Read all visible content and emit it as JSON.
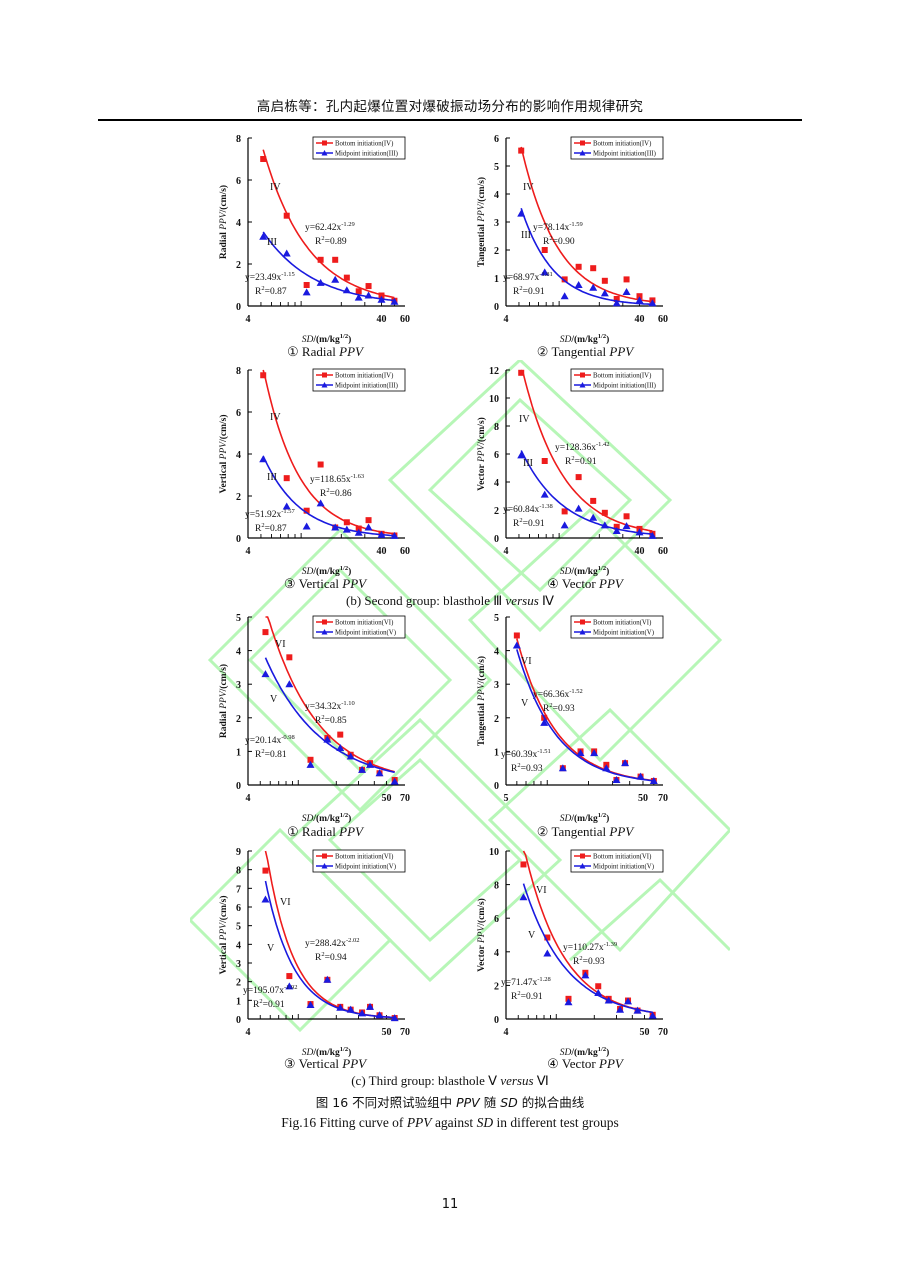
{
  "header": {
    "running_title": "高启栋等：孔内起爆位置对爆破振动场分布的影响作用规律研究"
  },
  "colors": {
    "bottom": "#ee1c1c",
    "midpoint": "#1a1adf",
    "watermark": "#7df07d"
  },
  "groups": [
    {
      "caption_pre": "(b) Second group: blasthole Ⅲ ",
      "caption_em": "versus",
      "caption_post": " Ⅳ"
    },
    {
      "caption_pre": "(c) Third group: blasthole Ⅴ ",
      "caption_em": "versus",
      "caption_post": " Ⅵ"
    }
  ],
  "figure": {
    "caption_cn_pre": "图 16  不同对照试验组中 ",
    "caption_cn_em1": "PPV",
    "caption_cn_mid": " 随 ",
    "caption_cn_em2": "SD",
    "caption_cn_post": " 的拟合曲线",
    "caption_en_pre": "Fig.16 Fitting curve of ",
    "caption_en_em1": "PPV",
    "caption_en_mid": " against ",
    "caption_en_em2": "SD",
    "caption_en_post": " in different test groups"
  },
  "page_number": "11",
  "chart_data": [
    {
      "type": "scatter",
      "panel_label": "①  Radial ",
      "panel_label_em": "PPV",
      "xlabel_em": "SD",
      "xlabel": "/(m/kg",
      "xlabel_sup": "1/2",
      "xlabel_end": ")",
      "ylabel_pre": "Radial ",
      "ylabel_em": "PPV",
      "ylabel_post": "/(cm/s)",
      "xscale": "log",
      "xlim": [
        4,
        60
      ],
      "xticks": [
        4,
        40,
        60
      ],
      "ylim": [
        0,
        8
      ],
      "yticks": [
        0,
        2,
        4,
        6,
        8
      ],
      "legend": [
        "Bottom initiation(IV)",
        "Midpoint initiation(III)"
      ],
      "legend_position": "top-right",
      "series": [
        {
          "name": "Bottom initiation(IV)",
          "marker": "square",
          "color_key": "bottom",
          "curve_label": "IV",
          "x": [
            5.2,
            7.8,
            11,
            14,
            18,
            22,
            27,
            32,
            40,
            50
          ],
          "y": [
            7.0,
            4.3,
            1.0,
            2.2,
            2.2,
            1.35,
            0.7,
            0.95,
            0.5,
            0.25
          ],
          "fit": {
            "a": 62.42,
            "b": -1.29,
            "r2": 0.89,
            "equation_coef": "y=62.42x",
            "equation_exp": "-1.29",
            "r2_text": "=0.89"
          }
        },
        {
          "name": "Midpoint initiation(III)",
          "marker": "triangle",
          "color_key": "midpoint",
          "curve_label": "III",
          "x": [
            5.2,
            7.8,
            11,
            14,
            18,
            22,
            27,
            32,
            40,
            50
          ],
          "y": [
            3.3,
            2.5,
            0.65,
            1.1,
            1.25,
            0.75,
            0.4,
            0.5,
            0.3,
            0.2
          ],
          "fit": {
            "a": 23.49,
            "b": -1.15,
            "r2": 0.87,
            "equation_coef": "y=23.49x",
            "equation_exp": "-1.15",
            "r2_text": "=0.87"
          }
        }
      ]
    },
    {
      "type": "scatter",
      "panel_label": "②  Tangential ",
      "panel_label_em": "PPV",
      "xlabel_em": "SD",
      "xlabel": "/(m/kg",
      "xlabel_sup": "1/2",
      "xlabel_end": ")",
      "ylabel_pre": "Tangential ",
      "ylabel_em": "PPV",
      "ylabel_post": "/(cm/s)",
      "xscale": "log",
      "xlim": [
        4,
        60
      ],
      "xticks": [
        4,
        40,
        60
      ],
      "ylim": [
        0,
        6
      ],
      "yticks": [
        0,
        1,
        2,
        3,
        4,
        5,
        6
      ],
      "legend": [
        "Bottom initiation(IV)",
        "Midpoint initiation(III)"
      ],
      "legend_position": "top-right",
      "series": [
        {
          "name": "Bottom initiation(IV)",
          "marker": "square",
          "color_key": "bottom",
          "curve_label": "IV",
          "x": [
            5.2,
            7.8,
            11,
            14,
            18,
            22,
            27,
            32,
            40,
            50
          ],
          "y": [
            5.55,
            2.0,
            0.95,
            1.4,
            1.35,
            0.9,
            0.25,
            0.95,
            0.35,
            0.2
          ],
          "fit": {
            "a": 78.14,
            "b": -1.59,
            "r2": 0.9,
            "equation_coef": "y=78.14x",
            "equation_exp": "-1.59",
            "r2_text": "=0.90"
          }
        },
        {
          "name": "Midpoint initiation(III)",
          "marker": "triangle",
          "color_key": "midpoint",
          "curve_label": "III",
          "x": [
            5.2,
            7.8,
            11,
            14,
            18,
            22,
            27,
            32,
            40,
            50
          ],
          "y": [
            3.3,
            1.2,
            0.35,
            0.75,
            0.65,
            0.45,
            0.1,
            0.5,
            0.2,
            0.1
          ],
          "fit": {
            "a": 68.97,
            "b": -1.81,
            "r2": 0.91,
            "equation_coef": "y=68.97x",
            "equation_exp": "-1.81",
            "r2_text": "=0.91"
          }
        }
      ]
    },
    {
      "type": "scatter",
      "panel_label": "③  Vertical ",
      "panel_label_em": "PPV",
      "xlabel_em": "SD",
      "xlabel": "/(m/kg",
      "xlabel_sup": "1/2",
      "xlabel_end": ")",
      "ylabel_pre": "Vertical ",
      "ylabel_em": "PPV",
      "ylabel_post": "/(cm/s)",
      "xscale": "log",
      "xlim": [
        4,
        60
      ],
      "xticks": [
        4,
        40,
        60
      ],
      "ylim": [
        0,
        8
      ],
      "yticks": [
        0,
        2,
        4,
        6,
        8
      ],
      "legend": [
        "Bottom initiation(IV)",
        "Midpoint initiation(III)"
      ],
      "legend_position": "top-right",
      "series": [
        {
          "name": "Bottom initiation(IV)",
          "marker": "square",
          "color_key": "bottom",
          "curve_label": "IV",
          "x": [
            5.2,
            7.8,
            11,
            14,
            18,
            22,
            27,
            32,
            40,
            50
          ],
          "y": [
            7.75,
            2.85,
            1.3,
            3.5,
            0.5,
            0.75,
            0.45,
            0.85,
            0.2,
            0.12
          ],
          "fit": {
            "a": 118.65,
            "b": -1.63,
            "r2": 0.86,
            "equation_coef": "y=118.65x",
            "equation_exp": "-1.63",
            "r2_text": "=0.86"
          }
        },
        {
          "name": "Midpoint initiation(III)",
          "marker": "triangle",
          "color_key": "midpoint",
          "curve_label": "III",
          "x": [
            5.2,
            7.8,
            11,
            14,
            18,
            22,
            27,
            32,
            40,
            50
          ],
          "y": [
            3.75,
            1.5,
            0.55,
            1.65,
            0.5,
            0.4,
            0.25,
            0.5,
            0.15,
            0.1
          ],
          "fit": {
            "a": 51.92,
            "b": -1.57,
            "r2": 0.87,
            "equation_coef": "y=51.92x",
            "equation_exp": "-1.57",
            "r2_text": "=0.87"
          }
        }
      ]
    },
    {
      "type": "scatter",
      "panel_label": "④  Vector ",
      "panel_label_em": "PPV",
      "xlabel_em": "SD",
      "xlabel": "/(m/kg",
      "xlabel_sup": "1/2",
      "xlabel_end": ")",
      "ylabel_pre": "Vector ",
      "ylabel_em": "PPV",
      "ylabel_post": "/(cm/s)",
      "xscale": "log",
      "xlim": [
        4,
        60
      ],
      "xticks": [
        4,
        40,
        60
      ],
      "ylim": [
        0,
        12
      ],
      "yticks": [
        0,
        2,
        4,
        6,
        8,
        10,
        12
      ],
      "legend": [
        "Bottom initiation(IV)",
        "Midpoint initiation(III)"
      ],
      "legend_position": "top-right",
      "series": [
        {
          "name": "Bottom initiation(IV)",
          "marker": "square",
          "color_key": "bottom",
          "curve_label": "IV",
          "x": [
            5.2,
            7.8,
            11,
            14,
            18,
            22,
            27,
            32,
            40,
            50
          ],
          "y": [
            11.8,
            5.5,
            1.9,
            4.35,
            2.65,
            1.8,
            0.8,
            1.55,
            0.65,
            0.3
          ],
          "fit": {
            "a": 128.36,
            "b": -1.42,
            "r2": 0.91,
            "equation_coef": "y=128.36x",
            "equation_exp": "-1.42",
            "r2_text": "=0.91"
          }
        },
        {
          "name": "Midpoint initiation(III)",
          "marker": "triangle",
          "color_key": "midpoint",
          "curve_label": "III",
          "x": [
            5.2,
            7.8,
            11,
            14,
            18,
            22,
            27,
            32,
            40,
            50
          ],
          "y": [
            5.9,
            3.1,
            0.9,
            2.1,
            1.45,
            0.9,
            0.5,
            0.85,
            0.4,
            0.15
          ],
          "fit": {
            "a": 60.84,
            "b": -1.38,
            "r2": 0.91,
            "equation_coef": "y=60.84x",
            "equation_exp": "-1.38",
            "r2_text": "=0.91"
          }
        }
      ]
    },
    {
      "type": "scatter",
      "panel_label": "①  Radial ",
      "panel_label_em": "PPV",
      "xlabel_em": "SD",
      "xlabel": "/(m/kg",
      "xlabel_sup": "1/2",
      "xlabel_end": ")",
      "ylabel_pre": "Radial ",
      "ylabel_em": "PPV",
      "ylabel_post": "/(cm/s)",
      "xscale": "log",
      "xlim": [
        4,
        70
      ],
      "xticks": [
        4,
        50,
        70
      ],
      "ylim": [
        0,
        5
      ],
      "yticks": [
        0,
        1,
        2,
        3,
        4,
        5
      ],
      "legend": [
        "Bottom initiation(VI)",
        "Midpoint initiation(V)"
      ],
      "legend_position": "top-right",
      "series": [
        {
          "name": "Bottom initiation(VI)",
          "marker": "square",
          "color_key": "bottom",
          "curve_label": "VI",
          "x": [
            5.5,
            8.5,
            12.5,
            17,
            21.5,
            26,
            32,
            37,
            44,
            58
          ],
          "y": [
            4.55,
            3.8,
            0.75,
            1.4,
            1.5,
            0.9,
            0.45,
            0.65,
            0.35,
            0.15
          ],
          "fit": {
            "a": 34.32,
            "b": -1.1,
            "r2": 0.85,
            "equation_coef": "y=34.32x",
            "equation_exp": "-1.10",
            "r2_text": "=0.85"
          }
        },
        {
          "name": "Midpoint initiation(V)",
          "marker": "triangle",
          "color_key": "midpoint",
          "curve_label": "V",
          "x": [
            5.5,
            8.5,
            12.5,
            17,
            21.5,
            26,
            32,
            37,
            44,
            58
          ],
          "y": [
            3.3,
            3.0,
            0.6,
            1.35,
            1.1,
            0.85,
            0.45,
            0.6,
            0.35,
            0.1
          ],
          "fit": {
            "a": 20.14,
            "b": -0.98,
            "r2": 0.81,
            "equation_coef": "y=20.14x",
            "equation_exp": "-0.98",
            "r2_text": "=0.81"
          }
        }
      ]
    },
    {
      "type": "scatter",
      "panel_label": "②  Tangential ",
      "panel_label_em": "PPV",
      "xlabel_em": "SD",
      "xlabel": "/(m/kg",
      "xlabel_sup": "1/2",
      "xlabel_end": ")",
      "ylabel_pre": "Tangential ",
      "ylabel_em": "PPV",
      "ylabel_post": "/(cm/s)",
      "xscale": "log",
      "xlim": [
        5,
        70
      ],
      "xticks": [
        5,
        50,
        70
      ],
      "ylim": [
        0,
        5
      ],
      "yticks": [
        0,
        1,
        2,
        3,
        4,
        5
      ],
      "legend": [
        "Bottom initiation(VI)",
        "Midpoint initiation(V)"
      ],
      "legend_position": "top-right",
      "series": [
        {
          "name": "Bottom initiation(VI)",
          "marker": "square",
          "color_key": "bottom",
          "curve_label": "VI",
          "x": [
            6,
            9.5,
            13,
            17.5,
            22,
            27,
            32,
            37,
            48,
            60
          ],
          "y": [
            4.45,
            2.0,
            0.5,
            1.0,
            1.0,
            0.6,
            0.15,
            0.65,
            0.25,
            0.12
          ],
          "fit": {
            "a": 66.36,
            "b": -1.52,
            "r2": 0.93,
            "equation_coef": "y=66.36x",
            "equation_exp": "-1.52",
            "r2_text": "=0.93"
          }
        },
        {
          "name": "Midpoint initiation(V)",
          "marker": "triangle",
          "color_key": "midpoint",
          "curve_label": "V",
          "x": [
            6,
            9.5,
            13,
            17.5,
            22,
            27,
            32,
            37,
            48,
            60
          ],
          "y": [
            4.15,
            1.85,
            0.5,
            0.95,
            0.95,
            0.5,
            0.15,
            0.65,
            0.25,
            0.12
          ],
          "fit": {
            "a": 60.39,
            "b": -1.51,
            "r2": 0.93,
            "equation_coef": "y=60.39x",
            "equation_exp": "-1.51",
            "r2_text": "=0.93"
          }
        }
      ]
    },
    {
      "type": "scatter",
      "panel_label": "③  Vertical ",
      "panel_label_em": "PPV",
      "xlabel_em": "SD",
      "xlabel": "/(m/kg",
      "xlabel_sup": "1/2",
      "xlabel_end": ")",
      "ylabel_pre": "Vertical ",
      "ylabel_em": "PPV",
      "ylabel_post": "/(cm/s)",
      "xscale": "log",
      "xlim": [
        4,
        70
      ],
      "xticks": [
        4,
        50,
        70
      ],
      "ylim": [
        0,
        9
      ],
      "yticks": [
        0,
        1,
        2,
        3,
        4,
        5,
        6,
        7,
        8,
        9
      ],
      "legend": [
        "Bottom initiation(VI)",
        "Midpoint initiation(V)"
      ],
      "legend_position": "top-right",
      "series": [
        {
          "name": "Bottom initiation(VI)",
          "marker": "square",
          "color_key": "bottom",
          "curve_label": "VI",
          "x": [
            5.5,
            8.5,
            12.5,
            17,
            21.5,
            26,
            32,
            37,
            44,
            58
          ],
          "y": [
            7.95,
            2.3,
            0.8,
            2.1,
            0.65,
            0.5,
            0.35,
            0.65,
            0.2,
            0.05
          ],
          "fit": {
            "a": 288.42,
            "b": -2.02,
            "r2": 0.94,
            "equation_coef": "y=288.42x",
            "equation_exp": "-2.02",
            "r2_text": "=0.94"
          }
        },
        {
          "name": "Midpoint initiation(V)",
          "marker": "triangle",
          "color_key": "midpoint",
          "curve_label": "V",
          "x": [
            5.5,
            8.5,
            12.5,
            17,
            21.5,
            26,
            32,
            37,
            44,
            58
          ],
          "y": [
            6.4,
            1.75,
            0.75,
            2.1,
            0.6,
            0.5,
            0.3,
            0.65,
            0.2,
            0.05
          ],
          "fit": {
            "a": 195.07,
            "b": -1.92,
            "r2": 0.91,
            "equation_coef": "y=195.07x",
            "equation_exp": "-1.92",
            "r2_text": "=0.91"
          }
        }
      ]
    },
    {
      "type": "scatter",
      "panel_label": "④  Vector ",
      "panel_label_em": "PPV",
      "xlabel_em": "SD",
      "xlabel": "/(m/kg",
      "xlabel_sup": "1/2",
      "xlabel_end": ")",
      "ylabel_pre": "Vector ",
      "ylabel_em": "PPV",
      "ylabel_post": "/(cm/s)",
      "xscale": "log",
      "xlim": [
        4,
        70
      ],
      "xticks": [
        4,
        50,
        70
      ],
      "ylim": [
        0,
        10
      ],
      "yticks": [
        0,
        2,
        4,
        6,
        8,
        10
      ],
      "legend": [
        "Bottom initiation(VI)",
        "Midpoint initiation(V)"
      ],
      "legend_position": "top-right",
      "series": [
        {
          "name": "Bottom initiation(VI)",
          "marker": "square",
          "color_key": "bottom",
          "curve_label": "VI",
          "x": [
            5.5,
            8.5,
            12.5,
            17,
            21.5,
            26,
            32,
            37,
            44,
            58
          ],
          "y": [
            9.2,
            4.85,
            1.2,
            2.75,
            1.95,
            1.2,
            0.6,
            1.1,
            0.5,
            0.25
          ],
          "fit": {
            "a": 110.27,
            "b": -1.39,
            "r2": 0.93,
            "equation_coef": "y=110.27x",
            "equation_exp": "-1.39",
            "r2_text": "=0.93"
          }
        },
        {
          "name": "Midpoint initiation(V)",
          "marker": "triangle",
          "color_key": "midpoint",
          "curve_label": "V",
          "x": [
            5.5,
            8.5,
            12.5,
            17,
            21.5,
            26,
            32,
            37,
            44,
            58
          ],
          "y": [
            7.25,
            3.9,
            1.0,
            2.6,
            1.55,
            1.1,
            0.55,
            1.05,
            0.5,
            0.2
          ],
          "fit": {
            "a": 71.47,
            "b": -1.28,
            "r2": 0.91,
            "equation_coef": "y=71.47x",
            "equation_exp": "-1.28",
            "r2_text": "=0.91"
          }
        }
      ]
    }
  ]
}
